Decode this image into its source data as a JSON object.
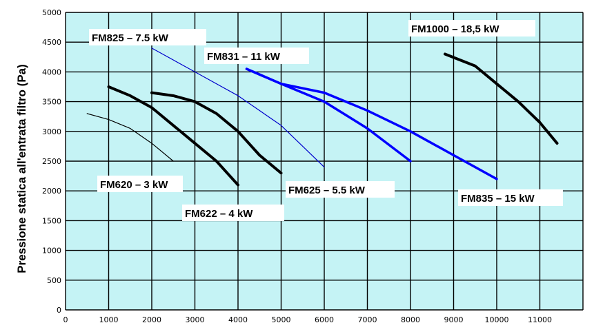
{
  "chart_data": {
    "type": "line",
    "title": "",
    "xlabel": "",
    "ylabel": "Pressione statica all'entrata  filtro (Pa)",
    "xlim": [
      0,
      12000
    ],
    "ylim": [
      0,
      5000
    ],
    "x_ticks": [
      "0",
      "1000",
      "2000",
      "3000",
      "4000",
      "5000",
      "6000",
      "7000",
      "8000",
      "9000",
      "10000",
      "11000"
    ],
    "y_ticks": [
      "0",
      "500",
      "1000",
      "1500",
      "2000",
      "2500",
      "3000",
      "3500",
      "4000",
      "4500",
      "5000"
    ],
    "grid": true,
    "background_color": "#c5f3f5",
    "series": [
      {
        "name": "FM620 – 3 kW",
        "color": "#000000",
        "weight": "thin",
        "x": [
          500,
          1000,
          1500,
          2000,
          2500
        ],
        "y": [
          3300,
          3200,
          3050,
          2800,
          2500
        ]
      },
      {
        "name": "FM622 – 4 kW",
        "color": "#000000",
        "weight": "thick",
        "x": [
          1000,
          1500,
          2000,
          2500,
          3000,
          3500,
          4000
        ],
        "y": [
          3750,
          3600,
          3400,
          3100,
          2800,
          2500,
          2100
        ]
      },
      {
        "name": "FM625 – 5.5 kW",
        "color": "#000000",
        "weight": "thick",
        "x": [
          2000,
          2500,
          3000,
          3500,
          4000,
          4500,
          5000
        ],
        "y": [
          3650,
          3600,
          3500,
          3300,
          3000,
          2600,
          2300
        ]
      },
      {
        "name": "FM825 – 7.5 kW",
        "color": "#0000cc",
        "weight": "thin",
        "x": [
          2000,
          3000,
          4000,
          5000,
          6000
        ],
        "y": [
          4400,
          4000,
          3600,
          3100,
          2400
        ]
      },
      {
        "name": "FM831 – 11 kW",
        "color": "#0000ff",
        "weight": "thick",
        "x": [
          4200,
          5000,
          6000,
          7000,
          8000
        ],
        "y": [
          4050,
          3800,
          3500,
          3050,
          2500
        ]
      },
      {
        "name": "FM835 – 15 kW",
        "color": "#0000ff",
        "weight": "thick",
        "x": [
          4200,
          5000,
          6000,
          7000,
          8000,
          9000,
          10000
        ],
        "y": [
          4050,
          3800,
          3650,
          3350,
          3000,
          2600,
          2200
        ]
      },
      {
        "name": "FM1000 – 18,5 kW",
        "color": "#000000",
        "weight": "thick",
        "x": [
          8800,
          9500,
          10000,
          10500,
          11000,
          11400
        ],
        "y": [
          4300,
          4100,
          3800,
          3500,
          3150,
          2800
        ]
      }
    ]
  }
}
